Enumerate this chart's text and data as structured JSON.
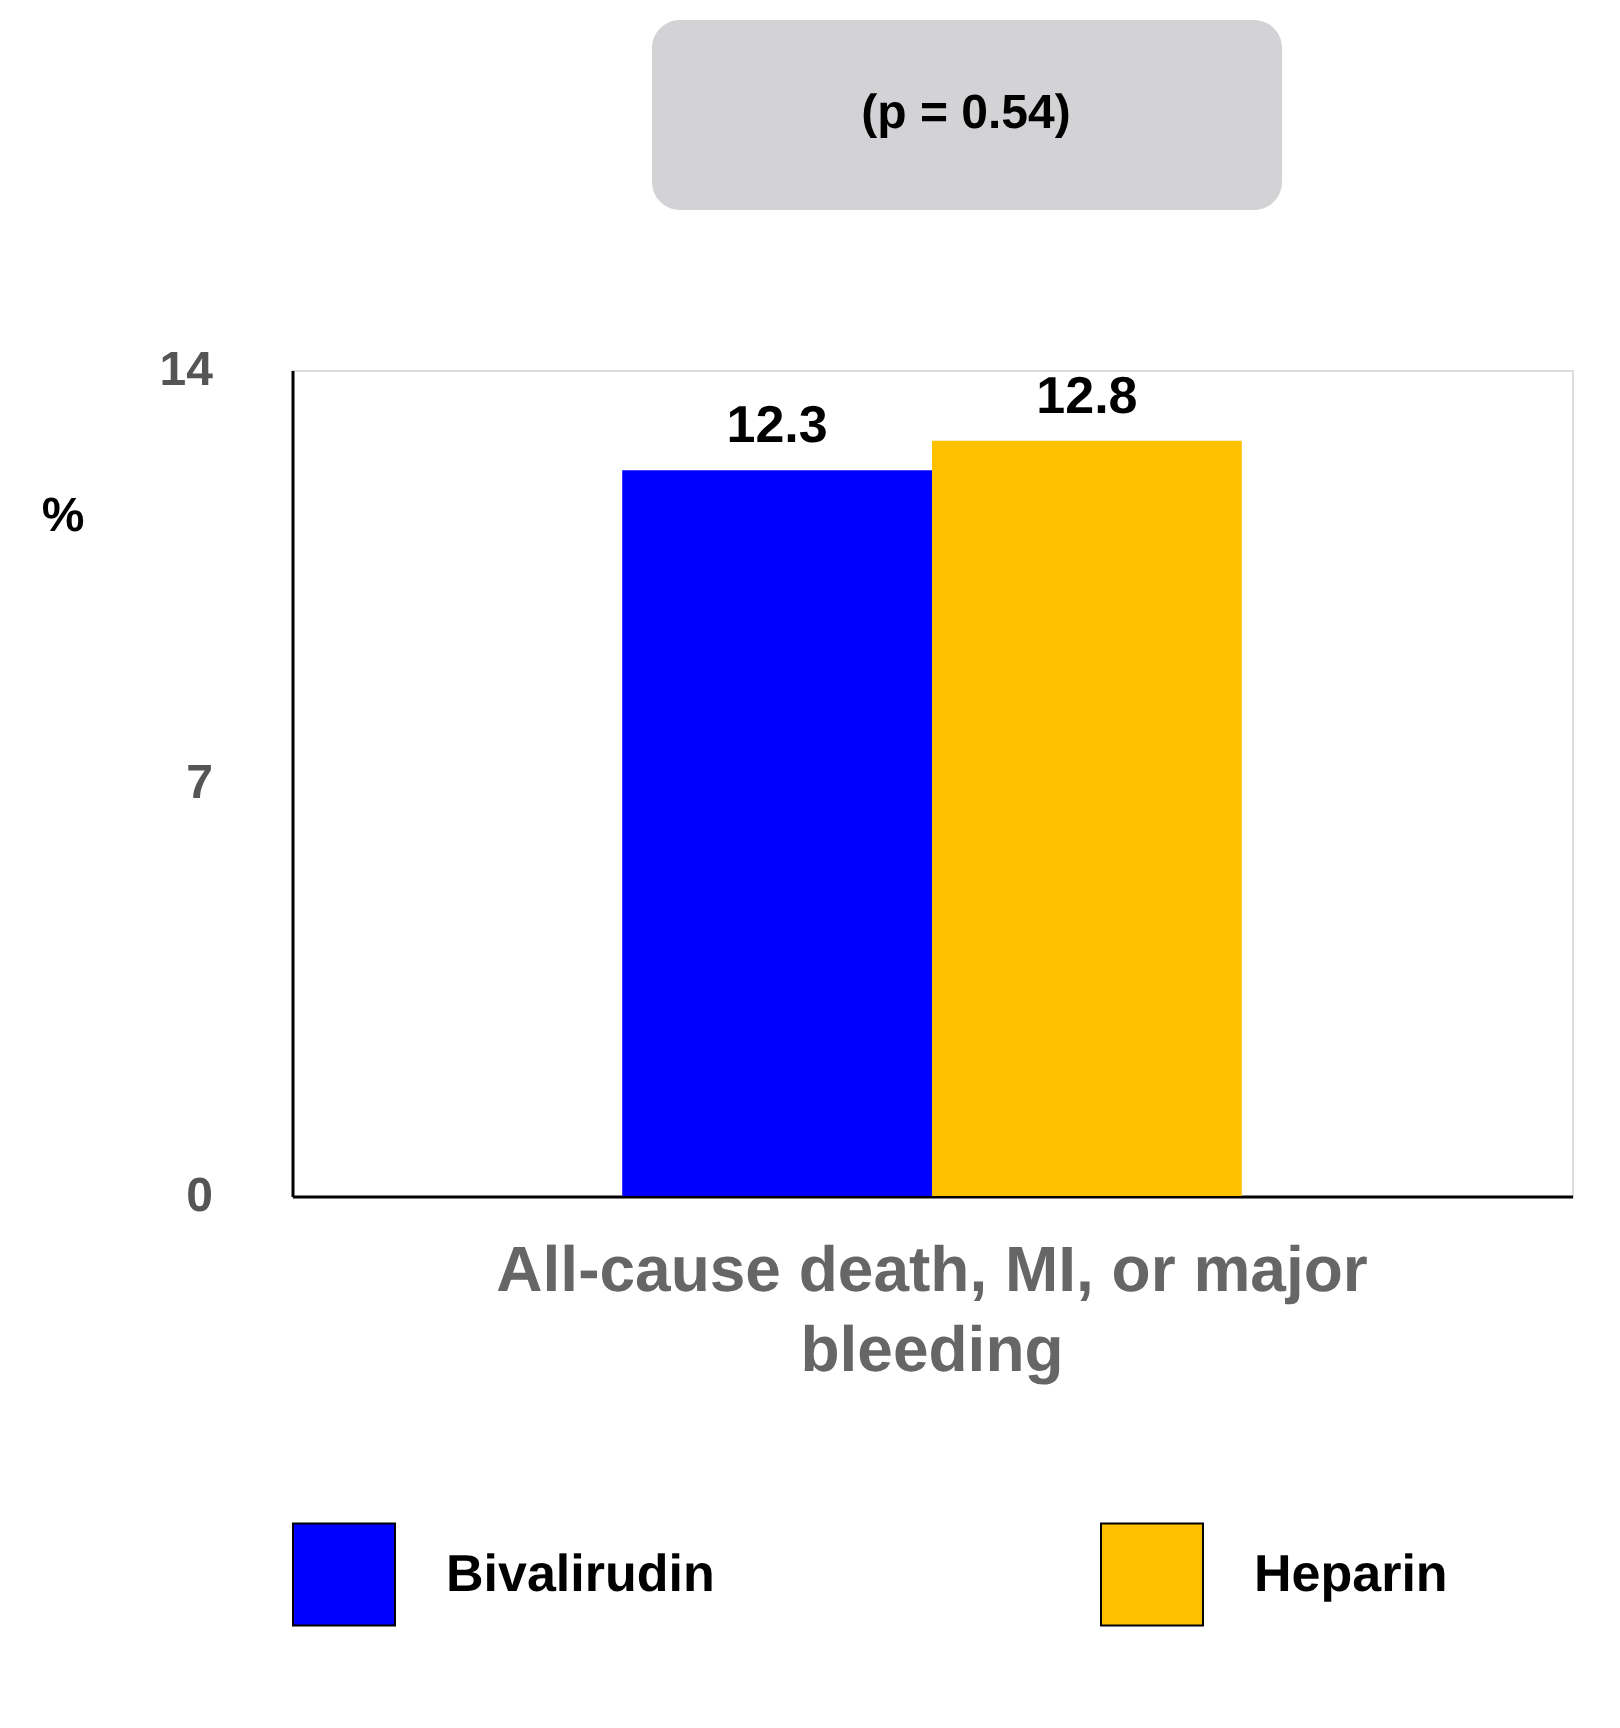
{
  "chart_data": {
    "type": "bar",
    "categories": [
      "All-cause death, MI, or major bleeding"
    ],
    "series": [
      {
        "name": "Bivalirudin",
        "color": "#0000ff",
        "values": [
          12.3
        ]
      },
      {
        "name": "Heparin",
        "color": "#ffc000",
        "values": [
          12.8
        ]
      }
    ],
    "ylabel": "%",
    "ylim": [
      0,
      14
    ],
    "yticks": [
      0,
      7,
      14
    ],
    "grid": false,
    "data_labels": true,
    "legend": "bottom",
    "annotations": [
      "(p = 0.54)"
    ]
  }
}
